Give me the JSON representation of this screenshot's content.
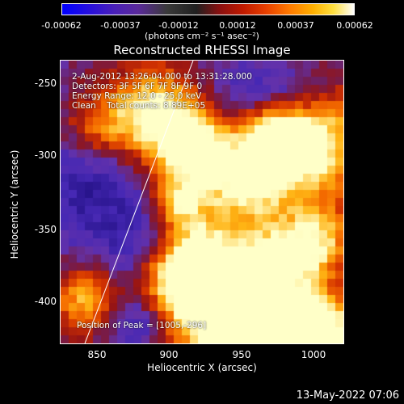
{
  "colorbar": {
    "tick_labels": [
      "-0.00062",
      "-0.00037",
      "-0.00012",
      "0.00012",
      "0.00037",
      "0.00062"
    ],
    "units": "(photons cm⁻² s⁻¹ asec⁻²)"
  },
  "title": "Reconstructed RHESSI Image",
  "info": {
    "time_range": "2-Aug-2012 13:26:04.000 to 13:31:28.000",
    "detectors": "Detectors: 3F 5F 6F 7F 8F 9F 0",
    "energy": "Energy Range: 12.0 - 25.0 keV",
    "clean": "Clean    Total counts: 8.89E+05",
    "peak": "Position of Peak = [1005,-296]"
  },
  "axes": {
    "xlabel": "Heliocentric X (arcsec)",
    "ylabel": "Heliocentric Y (arcsec)",
    "xticks": [
      "850",
      "900",
      "950",
      "1000"
    ],
    "yticks": [
      "-250",
      "-300",
      "-350",
      "-400"
    ]
  },
  "footer": {
    "date": "13-May-2022 07:06"
  }
}
